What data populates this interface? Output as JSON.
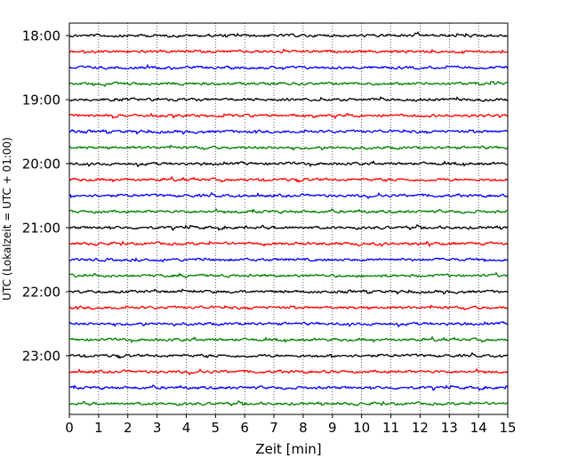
{
  "chart_data": {
    "type": "line",
    "title": "",
    "xlabel": "Zeit  [min]",
    "ylabel": "UTC (Lokalzeit = UTC + 01:00)",
    "xlim": [
      0,
      15
    ],
    "x_ticks": [
      0,
      1,
      2,
      3,
      4,
      5,
      6,
      7,
      8,
      9,
      10,
      11,
      12,
      13,
      14,
      15
    ],
    "x_tick_labels": [
      "0",
      "1",
      "2",
      "3",
      "4",
      "5",
      "6",
      "7",
      "8",
      "9",
      "10",
      "11",
      "12",
      "13",
      "14",
      "15"
    ],
    "y_tick_labels": [
      "18:00",
      "19:00",
      "20:00",
      "21:00",
      "22:00",
      "23:00"
    ],
    "trace_start_times": [
      "18:00",
      "18:15",
      "18:30",
      "18:45",
      "19:00",
      "19:15",
      "19:30",
      "19:45",
      "20:00",
      "20:15",
      "20:30",
      "20:45",
      "21:00",
      "21:15",
      "21:30",
      "21:45",
      "22:00",
      "22:15",
      "22:30",
      "22:45",
      "23:00",
      "23:15",
      "23:30",
      "23:45"
    ],
    "trace_minutes_per_line": 15,
    "trace_color_cycle": [
      "#000000",
      "#ff0000",
      "#0000ff",
      "#008000"
    ],
    "vertical_grid": true,
    "grid_style": "dotted",
    "legend": "none"
  }
}
